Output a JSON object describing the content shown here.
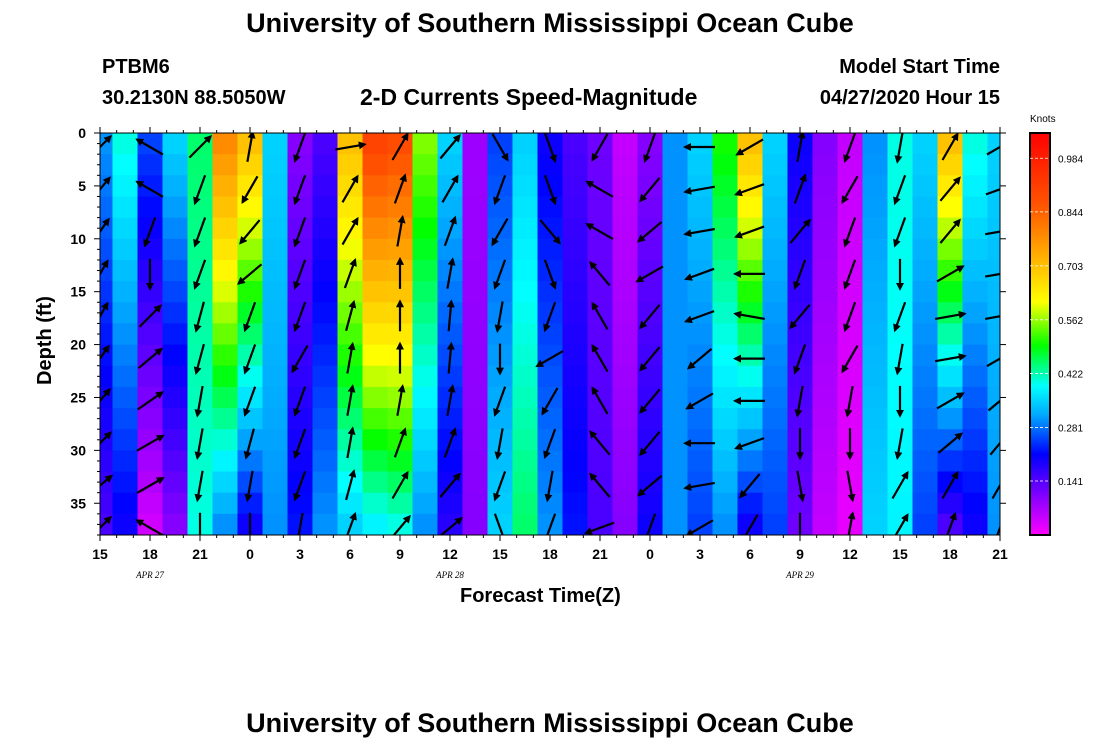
{
  "title": "University of Southern Mississippi Ocean Cube",
  "footer_title": "University of Southern Mississippi Ocean Cube",
  "header": {
    "station": "PTBM6",
    "location": "30.2130N 88.5050W",
    "plot_title": "2-D Currents Speed-Magnitude",
    "model_start_label": "Model Start Time",
    "model_start_value": "04/27/2020 Hour 15"
  },
  "colors": {
    "low": "#ff00ff",
    "high": "#ff0000",
    "mid": "#00ff00"
  },
  "chart_data": {
    "type": "heatmap",
    "title": "2-D Currents Speed-Magnitude",
    "xlabel": "Forecast Time(Z)",
    "ylabel": "Depth (ft)",
    "x_tick_labels": [
      "15",
      "18",
      "21",
      "0",
      "3",
      "6",
      "9",
      "12",
      "15",
      "18",
      "21",
      "0",
      "3",
      "6",
      "9",
      "12",
      "15",
      "18",
      "21"
    ],
    "x_range_hours": [
      0,
      54
    ],
    "date_labels": [
      {
        "text": "APR 27",
        "hour": 3
      },
      {
        "text": "APR 28",
        "hour": 21
      },
      {
        "text": "APR 29",
        "hour": 42
      }
    ],
    "y_ticks": [
      0,
      5,
      10,
      15,
      20,
      25,
      30,
      35
    ],
    "ylim": [
      0,
      38
    ],
    "colorbar": {
      "units": "Knots",
      "ticks": [
        "0.984",
        "0.844",
        "0.703",
        "0.562",
        "0.422",
        "0.281",
        "0.141"
      ],
      "range": [
        0,
        1.05
      ]
    },
    "columns": [
      {
        "hour": 0,
        "top": 0.3,
        "bottom": 0.15
      },
      {
        "hour": 1.5,
        "top": 0.4,
        "bottom": 0.2
      },
      {
        "hour": 3,
        "top": 0.25,
        "bottom": 0.04
      },
      {
        "hour": 4.5,
        "top": 0.35,
        "bottom": 0.1
      },
      {
        "hour": 6,
        "top": 0.45,
        "bottom": 0.4
      },
      {
        "hour": 7.5,
        "top": 0.78,
        "bottom": 0.3
      },
      {
        "hour": 9,
        "top": 0.7,
        "bottom": 0.2
      },
      {
        "hour": 10.5,
        "top": 0.35,
        "bottom": 0.3
      },
      {
        "hour": 12,
        "top": 0.1,
        "bottom": 0.22
      },
      {
        "hour": 13.5,
        "top": 0.15,
        "bottom": 0.3
      },
      {
        "hour": 15,
        "top": 0.7,
        "bottom": 0.35
      },
      {
        "hour": 16.5,
        "top": 0.9,
        "bottom": 0.38
      },
      {
        "hour": 18,
        "top": 0.88,
        "bottom": 0.4
      },
      {
        "hour": 19.5,
        "top": 0.55,
        "bottom": 0.3
      },
      {
        "hour": 21,
        "top": 0.35,
        "bottom": 0.18
      },
      {
        "hour": 22.5,
        "top": 0.08,
        "bottom": 0.1
      },
      {
        "hour": 24,
        "top": 0.25,
        "bottom": 0.35
      },
      {
        "hour": 25.5,
        "top": 0.35,
        "bottom": 0.45
      },
      {
        "hour": 27,
        "top": 0.2,
        "bottom": 0.3
      },
      {
        "hour": 28.5,
        "top": 0.15,
        "bottom": 0.22
      },
      {
        "hour": 30,
        "top": 0.12,
        "bottom": 0.15
      },
      {
        "hour": 31.5,
        "top": 0.05,
        "bottom": 0.1
      },
      {
        "hour": 33,
        "top": 0.1,
        "bottom": 0.2
      },
      {
        "hour": 34.5,
        "top": 0.3,
        "bottom": 0.3
      },
      {
        "hour": 36,
        "top": 0.35,
        "bottom": 0.25
      },
      {
        "hour": 37.5,
        "top": 0.5,
        "bottom": 0.3
      },
      {
        "hour": 39,
        "top": 0.7,
        "bottom": 0.2
      },
      {
        "hour": 40.5,
        "top": 0.35,
        "bottom": 0.25
      },
      {
        "hour": 42,
        "top": 0.2,
        "bottom": 0.12
      },
      {
        "hour": 43.5,
        "top": 0.1,
        "bottom": 0.05
      },
      {
        "hour": 45,
        "top": 0.05,
        "bottom": 0.02
      },
      {
        "hour": 46.5,
        "top": 0.3,
        "bottom": 0.35
      },
      {
        "hour": 48,
        "top": 0.4,
        "bottom": 0.38
      },
      {
        "hour": 49.5,
        "top": 0.35,
        "bottom": 0.25
      },
      {
        "hour": 51,
        "top": 0.7,
        "bottom": 0.15
      },
      {
        "hour": 52.5,
        "top": 0.4,
        "bottom": 0.2
      },
      {
        "hour": 54,
        "top": 0.35,
        "bottom": 0.3
      }
    ],
    "arrow_grid": {
      "hours": [
        0,
        3,
        6,
        9,
        12,
        15,
        18,
        21,
        24,
        27,
        30,
        33,
        36,
        39,
        42,
        45,
        48,
        51,
        54
      ],
      "depths": [
        0,
        4,
        8,
        12,
        16,
        20,
        24,
        28,
        32,
        36
      ],
      "directions_deg": [
        [
          45,
          300,
          45,
          10,
          200,
          80,
          30,
          40,
          150,
          160,
          210,
          200,
          270,
          240,
          10,
          200,
          190,
          30,
          60
        ],
        [
          40,
          300,
          200,
          210,
          200,
          30,
          20,
          30,
          200,
          160,
          300,
          220,
          260,
          250,
          20,
          210,
          200,
          40,
          70
        ],
        [
          35,
          200,
          200,
          220,
          200,
          30,
          10,
          20,
          210,
          140,
          300,
          230,
          260,
          250,
          40,
          200,
          200,
          40,
          80
        ],
        [
          30,
          180,
          200,
          230,
          200,
          20,
          0,
          10,
          200,
          160,
          320,
          240,
          250,
          270,
          200,
          200,
          180,
          60,
          80
        ],
        [
          30,
          45,
          195,
          200,
          200,
          15,
          0,
          5,
          190,
          200,
          330,
          220,
          250,
          280,
          220,
          200,
          200,
          80,
          80
        ],
        [
          35,
          50,
          195,
          200,
          210,
          10,
          0,
          5,
          180,
          240,
          330,
          220,
          230,
          270,
          200,
          210,
          190,
          80,
          60
        ],
        [
          40,
          55,
          190,
          200,
          200,
          10,
          10,
          10,
          200,
          210,
          330,
          220,
          240,
          270,
          190,
          190,
          180,
          60,
          50
        ],
        [
          45,
          60,
          190,
          195,
          200,
          10,
          20,
          20,
          190,
          200,
          320,
          220,
          270,
          250,
          180,
          180,
          190,
          50,
          40
        ],
        [
          50,
          60,
          190,
          190,
          200,
          15,
          30,
          40,
          200,
          190,
          320,
          230,
          260,
          220,
          170,
          170,
          30,
          30,
          30
        ],
        [
          45,
          300,
          180,
          180,
          190,
          20,
          40,
          50,
          160,
          200,
          250,
          200,
          240,
          210,
          180,
          10,
          30,
          20,
          20
        ]
      ]
    }
  }
}
